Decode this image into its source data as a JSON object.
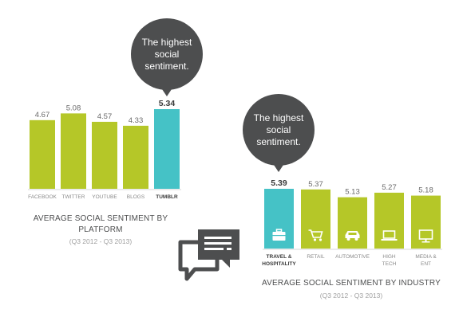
{
  "charts": {
    "platform": {
      "bubble_text": "The highest social sentiment.",
      "title": "AVERAGE SOCIAL SENTIMENT BY PLATFORM",
      "subtitle": "(Q3 2012 - Q3 2013)"
    },
    "industry": {
      "bubble_text": "The highest social sentiment.",
      "title": "AVERAGE SOCIAL SENTIMENT BY INDUSTRY",
      "subtitle": "(Q3 2012 - Q3 2013)"
    }
  },
  "colors": {
    "bar": "#b5c728",
    "highlight": "#45c2c6",
    "bubble": "#4d4e4f",
    "text": "#4d4e4f",
    "muted": "#a0a0a0"
  },
  "chart_data": [
    {
      "type": "bar",
      "title": "AVERAGE SOCIAL SENTIMENT BY PLATFORM",
      "subtitle": "(Q3 2012 - Q3 2013)",
      "categories": [
        "FACEBOOK",
        "TWITTER",
        "YOUTUBE",
        "BLOGS",
        "TUMBLR"
      ],
      "values": [
        4.67,
        5.08,
        4.57,
        4.33,
        5.34
      ],
      "value_labels": [
        "4.67",
        "5.08",
        "4.57",
        "4.33",
        "5.34"
      ],
      "highlight_index": 4
    },
    {
      "type": "bar",
      "title": "AVERAGE SOCIAL SENTIMENT BY INDUSTRY",
      "subtitle": "(Q3 2012 - Q3 2013)",
      "categories": [
        [
          "TRAVEL &",
          "HOSPITALITY"
        ],
        [
          "RETAIL"
        ],
        [
          "AUTOMOTIVE"
        ],
        [
          "HIGH",
          "TECH"
        ],
        [
          "MEDIA &",
          "ENT"
        ]
      ],
      "values": [
        5.39,
        5.37,
        5.13,
        5.27,
        5.18
      ],
      "value_labels": [
        "5.39",
        "5.37",
        "5.13",
        "5.27",
        "5.18"
      ],
      "icons": [
        "briefcase-icon",
        "shopping-cart-icon",
        "car-icon",
        "laptop-icon",
        "monitor-icon"
      ],
      "highlight_index": 0
    }
  ]
}
